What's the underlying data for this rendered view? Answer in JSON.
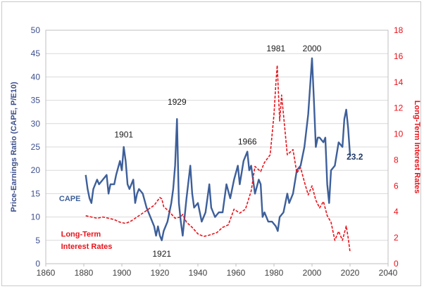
{
  "chart_data": {
    "type": "line",
    "xlim": [
      1860,
      2040
    ],
    "ylim_left": [
      0,
      50
    ],
    "ylim_right": [
      0,
      18
    ],
    "x_ticks": [
      1860,
      1880,
      1900,
      1920,
      1940,
      1960,
      1980,
      2000,
      2020,
      2040
    ],
    "y_ticks_left": [
      0,
      5,
      10,
      15,
      20,
      25,
      30,
      35,
      40,
      45,
      50
    ],
    "y_ticks_right": [
      0,
      2,
      4,
      6,
      8,
      10,
      12,
      14,
      16,
      18
    ],
    "ylabel_left": "Price-Earnings Ratio (CAPE, P/E10)",
    "ylabel_right": "Long-Term Interest Rates",
    "grid": "horizontal",
    "colors": {
      "cape": "#3d5f9a",
      "rates": "#e8131b",
      "left_axis_text": "#3d4f8c",
      "right_axis_text": "#e8131b",
      "grid": "#d9d9d9"
    },
    "series": [
      {
        "name": "CAPE",
        "axis": "left",
        "style": "solid",
        "x": [
          1881,
          1882,
          1883,
          1884,
          1885,
          1886,
          1887,
          1888,
          1890,
          1892,
          1893,
          1894,
          1896,
          1897,
          1899,
          1900,
          1901,
          1902,
          1903,
          1904,
          1906,
          1907,
          1908,
          1909,
          1911,
          1913,
          1915,
          1917,
          1918,
          1919,
          1920,
          1921,
          1922,
          1924,
          1926,
          1927,
          1928,
          1929,
          1929.8,
          1930,
          1931,
          1932,
          1933,
          1934,
          1936,
          1937,
          1938,
          1940,
          1942,
          1944,
          1946,
          1947,
          1949,
          1951,
          1953,
          1955,
          1957,
          1959,
          1961,
          1962,
          1964,
          1966,
          1967,
          1968,
          1970,
          1972,
          1973,
          1974,
          1975,
          1977,
          1979,
          1981,
          1982,
          1983,
          1985,
          1987,
          1988,
          1990,
          1992,
          1994,
          1996,
          1998,
          1999,
          2000,
          2001,
          2002,
          2003,
          2004,
          2006,
          2007,
          2008,
          2009,
          2010,
          2012,
          2014,
          2016,
          2017,
          2018,
          2019,
          2020
        ],
        "values": [
          19,
          16,
          14,
          13,
          16,
          17,
          18,
          17,
          18,
          19,
          15,
          17,
          17,
          19,
          22,
          20,
          25,
          22,
          17,
          16,
          18,
          13,
          15,
          16,
          15,
          12,
          10,
          8,
          6,
          8,
          6,
          5,
          7,
          9,
          13,
          16,
          21,
          31,
          16,
          13,
          9,
          6,
          10,
          14,
          21,
          15,
          12,
          13,
          9,
          11,
          17,
          12,
          10,
          11,
          11,
          17,
          14,
          18,
          21,
          17,
          22,
          24,
          20,
          21,
          15,
          18,
          17,
          10,
          11,
          9,
          9,
          8,
          7,
          10,
          11,
          15,
          13,
          15,
          20,
          21,
          25,
          32,
          38,
          44,
          35,
          25,
          27,
          27,
          26,
          27,
          17,
          13,
          20,
          21,
          26,
          25,
          31,
          33,
          29,
          23.2
        ]
      },
      {
        "name": "Long-Term Interest Rates",
        "axis": "right",
        "style": "dashed",
        "x": [
          1881,
          1884,
          1887,
          1890,
          1893,
          1896,
          1899,
          1902,
          1905,
          1908,
          1911,
          1914,
          1917,
          1920,
          1921,
          1922,
          1925,
          1928,
          1931,
          1932,
          1934,
          1937,
          1940,
          1943,
          1946,
          1950,
          1953,
          1956,
          1959,
          1962,
          1965,
          1968,
          1970,
          1973,
          1975,
          1978,
          1980,
          1981,
          1981.7,
          1983,
          1984,
          1985,
          1987,
          1990,
          1992,
          1994,
          1996,
          1998,
          2000,
          2002,
          2004,
          2006,
          2008,
          2010,
          2012,
          2014,
          2016,
          2018,
          2019,
          2020
        ],
        "values": [
          3.7,
          3.6,
          3.5,
          3.6,
          3.5,
          3.4,
          3.2,
          3.1,
          3.3,
          3.6,
          3.9,
          4.2,
          4.5,
          5.1,
          5.0,
          4.4,
          4.0,
          3.5,
          3.6,
          3.8,
          3.2,
          2.8,
          2.3,
          2.1,
          2.2,
          2.4,
          2.8,
          3.0,
          4.2,
          3.9,
          4.2,
          5.6,
          7.5,
          7.1,
          7.8,
          8.4,
          11.5,
          13.9,
          15.3,
          11.0,
          13.0,
          11.5,
          8.4,
          8.8,
          7.0,
          7.4,
          6.3,
          5.3,
          6.0,
          4.9,
          4.3,
          4.8,
          3.7,
          3.2,
          1.8,
          2.5,
          1.8,
          2.9,
          2.0,
          0.9
        ]
      }
    ],
    "annotations": [
      {
        "text": "1901",
        "x": 1901,
        "y": 27,
        "axis": "left"
      },
      {
        "text": "1929",
        "x": 1929,
        "y": 34,
        "axis": "left"
      },
      {
        "text": "1921",
        "x": 1921,
        "y": 1.5,
        "axis": "left"
      },
      {
        "text": "1966",
        "x": 1966,
        "y": 25.5,
        "axis": "left"
      },
      {
        "text": "1981",
        "x": 1981,
        "y": 45.5,
        "axis": "left"
      },
      {
        "text": "2000",
        "x": 2000,
        "y": 45.5,
        "axis": "left"
      },
      {
        "text": "23.2",
        "x": 2022.5,
        "y": 22.3,
        "axis": "left",
        "bold": true
      }
    ],
    "labels": {
      "cape": "CAPE",
      "rates_line1": "Long-Term",
      "rates_line2": "Interest Rates"
    }
  }
}
